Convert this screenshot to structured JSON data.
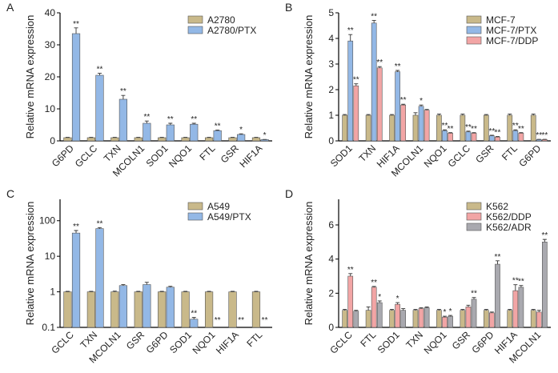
{
  "chart_data": [
    {
      "type": "bar",
      "panel_label": "A",
      "y_label": "Relative mRNA expression",
      "categories": [
        "G6PD",
        "GCLC",
        "TXN",
        "MCOLN1",
        "SOD1",
        "NQO1",
        "FTL",
        "GSR",
        "HIF1A"
      ],
      "series": [
        {
          "name": "A2780",
          "color": "#c9b98a",
          "values": [
            1,
            1,
            1,
            1,
            1,
            1,
            1,
            1,
            1
          ],
          "errors": [
            0.1,
            0.1,
            0.1,
            0.1,
            0.1,
            0.1,
            0.1,
            0.1,
            0.1
          ],
          "annotations": [
            null,
            null,
            null,
            null,
            null,
            null,
            null,
            null,
            null
          ]
        },
        {
          "name": "A2780/PTX",
          "color": "#93b8e6",
          "values": [
            33.5,
            20.5,
            13,
            5.5,
            5,
            5.2,
            3.2,
            2,
            0.4
          ],
          "errors": [
            1.8,
            0.6,
            1.2,
            0.7,
            0.5,
            0.3,
            0.2,
            0.2,
            0.05
          ],
          "annotations": [
            "**",
            "**",
            "**",
            "**",
            "**",
            "**",
            "**",
            "*",
            "*"
          ]
        }
      ],
      "ylim": [
        0,
        40
      ],
      "yticks": [
        0,
        10,
        20,
        30,
        40
      ],
      "log": false,
      "legend": "upper right"
    },
    {
      "type": "bar",
      "panel_label": "B",
      "y_label": "Relative mRNA expression",
      "categories": [
        "SOD1",
        "TXN",
        "HIF1A",
        "MCOLN1",
        "NQO1",
        "GCLC",
        "GSR",
        "FTL",
        "G6PD"
      ],
      "series": [
        {
          "name": "MCF-7",
          "color": "#c9b98a",
          "values": [
            1,
            1,
            1,
            1,
            1,
            1,
            1,
            1,
            1
          ],
          "errors": [
            0.03,
            0.03,
            0.03,
            0.1,
            0.05,
            0.05,
            0.03,
            0.05,
            0.05
          ],
          "annotations": [
            null,
            null,
            null,
            null,
            null,
            null,
            null,
            null,
            null
          ]
        },
        {
          "name": "MCF-7/PTX",
          "color": "#93b8e6",
          "values": [
            3.9,
            4.6,
            2.7,
            1.35,
            0.4,
            0.35,
            0.2,
            0.4,
            0.05
          ],
          "errors": [
            0.25,
            0.1,
            0.05,
            0.05,
            0.03,
            0.03,
            0.02,
            0.03,
            0.01
          ],
          "annotations": [
            "**",
            "**",
            "**",
            "*",
            "**",
            "**",
            "**",
            "**",
            "**"
          ]
        },
        {
          "name": "MCF-7/DDP",
          "color": "#f2a5a5",
          "values": [
            2.15,
            2.85,
            1.4,
            1.2,
            0.3,
            0.3,
            0.15,
            0.3,
            0.05
          ],
          "errors": [
            0.08,
            0.05,
            0.03,
            0.03,
            0.02,
            0.02,
            0.02,
            0.02,
            0.01
          ],
          "annotations": [
            "**",
            "**",
            "**",
            null,
            "**",
            "**",
            "**",
            "**",
            "**"
          ]
        }
      ],
      "ylim": [
        0,
        5
      ],
      "yticks": [
        0,
        1,
        2,
        3,
        4,
        5
      ],
      "log": false,
      "legend": "upper right"
    },
    {
      "type": "bar",
      "panel_label": "C",
      "y_label": "Relative mRNA expression",
      "categories": [
        "GCLC",
        "TXN",
        "MCOLN1",
        "GSR",
        "G6PD",
        "SOD1",
        "NQO1",
        "HIF1A",
        "FTL"
      ],
      "series": [
        {
          "name": "A549",
          "color": "#c9b98a",
          "values": [
            1,
            1,
            1,
            1,
            1,
            1,
            1,
            1,
            1
          ],
          "errors": [
            0.03,
            0.03,
            0.05,
            0.03,
            0.03,
            0.03,
            0.03,
            0.03,
            0.03
          ],
          "annotations": [
            null,
            null,
            null,
            null,
            null,
            null,
            null,
            null,
            null
          ]
        },
        {
          "name": "A549/PTX",
          "color": "#93b8e6",
          "values": [
            45,
            60,
            1.5,
            1.6,
            1.35,
            0.17,
            null,
            null,
            null
          ],
          "errors": [
            8,
            4,
            0.1,
            0.25,
            0.08,
            0.02,
            null,
            null,
            null
          ],
          "annotations": [
            "**",
            "**",
            null,
            null,
            null,
            "**",
            "**",
            "**",
            "**"
          ]
        }
      ],
      "ylim": [
        0.1,
        400
      ],
      "yticks": [
        0.1,
        1,
        10,
        100
      ],
      "log": true,
      "legend": "upper right"
    },
    {
      "type": "bar",
      "panel_label": "D",
      "y_label": "Relative mRNA expression",
      "categories": [
        "GCLC",
        "FTL",
        "SOD1",
        "TXN",
        "NQO1",
        "GSR",
        "G6PD",
        "HIF1A",
        "MCOLN1"
      ],
      "series": [
        {
          "name": "K562",
          "color": "#c9b98a",
          "values": [
            1,
            1,
            1,
            1,
            1,
            1,
            1,
            1,
            1
          ],
          "errors": [
            0.05,
            0.2,
            0.05,
            0.05,
            0.05,
            0.05,
            0.05,
            0.05,
            0.05
          ],
          "annotations": [
            null,
            null,
            null,
            null,
            null,
            null,
            null,
            null,
            null
          ]
        },
        {
          "name": "K562/DDP",
          "color": "#f2a5a5",
          "values": [
            3.0,
            2.35,
            1.35,
            1.1,
            0.6,
            1.2,
            0.85,
            2.15,
            0.9
          ],
          "errors": [
            0.15,
            0.05,
            0.1,
            0.05,
            0.05,
            0.1,
            0.05,
            0.35,
            0.1
          ],
          "annotations": [
            "**",
            "**",
            "*",
            null,
            "*",
            null,
            null,
            "**",
            null
          ]
        },
        {
          "name": "K562/ADR",
          "color": "#a9a9af",
          "values": [
            0.95,
            1.45,
            1.0,
            1.15,
            0.65,
            1.65,
            3.7,
            2.35,
            5.0
          ],
          "errors": [
            0.05,
            0.1,
            0.1,
            0.05,
            0.05,
            0.1,
            0.2,
            0.1,
            0.15
          ],
          "annotations": [
            null,
            "*",
            null,
            null,
            "*",
            "**",
            "**",
            "**",
            "**"
          ]
        }
      ],
      "ylim": [
        0,
        7.5
      ],
      "yticks": [
        0,
        2,
        4,
        6
      ],
      "log": false,
      "legend": "upper right"
    }
  ]
}
